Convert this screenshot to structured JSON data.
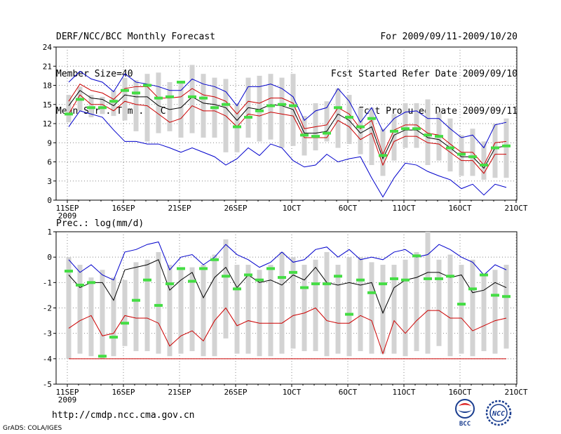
{
  "header": {
    "title": "DERF/NCC/BCC Monthly Forecast",
    "member_size": "Member Size=40",
    "variable": "Mean Surf. Temp.: °C",
    "period": "For 2009/09/11-2009/10/20",
    "refer_date": "Fcst Started Refer Date 2009/09/10",
    "produced_date": "Fcst Produced Date 2009/09/11"
  },
  "footer": {
    "url": "http://cmdp.ncc.cma.gov.cn",
    "grads_credit": "GrADS: COLA/IGES",
    "logo_bcc": "BCC",
    "logo_ncc": "NCC"
  },
  "colors": {
    "ensemble_max": "#0000cc",
    "ensemble_min": "#0000cc",
    "mean_plus_std": "#cc0000",
    "mean_minus_std": "#cc0000",
    "ensemble_mean": "#000000",
    "observed": "#44dd44",
    "box": "#d3d3d3",
    "grid": "#888888"
  },
  "chart_data": [
    {
      "type": "line",
      "title": "Mean Surf. Temp.: °C",
      "x_labels": [
        "11SEP",
        "16SEP",
        "21SEP",
        "26SEP",
        "1OCT",
        "6OCT",
        "11OCT",
        "16OCT",
        "21OCT"
      ],
      "year_label": "2009",
      "ylim": [
        0,
        24
      ],
      "yticks": [
        0,
        3,
        6,
        9,
        12,
        15,
        18,
        21,
        24
      ],
      "days": 40,
      "series": [
        {
          "name": "ensemble max",
          "color": "#0000cc",
          "values": [
            18.5,
            20.2,
            19.0,
            18.5,
            17.0,
            19.8,
            18.5,
            18.2,
            17.8,
            17.2,
            17.2,
            19.0,
            18.2,
            17.8,
            17.0,
            14.8,
            17.8,
            17.8,
            18.2,
            17.5,
            16.2,
            12.5,
            14.0,
            14.5,
            17.5,
            15.5,
            12.2,
            14.5,
            10.8,
            12.8,
            13.8,
            14.0,
            12.8,
            12.8,
            11.2,
            9.8,
            10.2,
            8.2,
            11.8,
            12.2
          ]
        },
        {
          "name": "mean+std",
          "color": "#cc0000",
          "values": [
            15.5,
            18.2,
            17.2,
            16.8,
            15.8,
            17.5,
            17.8,
            17.8,
            16.0,
            16.0,
            16.2,
            17.5,
            16.5,
            16.2,
            15.5,
            13.5,
            15.5,
            15.2,
            16.0,
            16.0,
            15.2,
            11.2,
            11.5,
            11.8,
            14.5,
            13.5,
            11.2,
            12.5,
            7.2,
            11.0,
            11.8,
            11.8,
            10.5,
            10.2,
            8.8,
            7.5,
            7.5,
            5.5,
            9.0,
            9.2
          ]
        },
        {
          "name": "ensemble mean",
          "color": "#000000",
          "values": [
            14.8,
            17.2,
            16.0,
            15.8,
            14.8,
            16.5,
            16.2,
            16.2,
            14.8,
            14.2,
            14.5,
            16.2,
            15.2,
            15.0,
            14.5,
            12.5,
            14.5,
            14.2,
            15.0,
            14.8,
            14.2,
            10.5,
            10.5,
            10.8,
            13.5,
            12.5,
            10.5,
            11.5,
            6.5,
            10.2,
            11.0,
            11.0,
            9.8,
            9.5,
            8.2,
            6.8,
            6.8,
            5.0,
            8.2,
            8.5
          ]
        },
        {
          "name": "mean-std",
          "color": "#cc0000",
          "values": [
            13.5,
            16.5,
            15.0,
            15.0,
            14.0,
            15.5,
            15.0,
            14.8,
            13.5,
            12.2,
            12.8,
            14.8,
            14.0,
            14.0,
            13.2,
            11.5,
            13.5,
            13.2,
            13.8,
            13.5,
            13.2,
            9.8,
            9.8,
            9.8,
            12.5,
            11.5,
            9.5,
            10.5,
            5.5,
            9.2,
            10.0,
            10.0,
            9.0,
            8.8,
            7.5,
            6.2,
            6.2,
            4.2,
            7.2,
            7.2
          ]
        },
        {
          "name": "ensemble min",
          "color": "#0000cc",
          "values": [
            11.5,
            14.0,
            13.5,
            13.0,
            11.0,
            9.2,
            9.2,
            8.8,
            8.8,
            8.2,
            7.5,
            8.2,
            7.5,
            6.8,
            5.5,
            6.5,
            8.2,
            7.0,
            8.8,
            8.2,
            6.2,
            5.2,
            5.5,
            7.2,
            6.0,
            6.5,
            6.8,
            3.5,
            0.5,
            3.5,
            5.8,
            5.5,
            4.5,
            3.8,
            3.2,
            1.8,
            2.5,
            0.8,
            2.5,
            2.0
          ]
        },
        {
          "name": "observed",
          "color": "#44dd44",
          "values": [
            13.5,
            15.8,
            14.5,
            14.5,
            15.5,
            17.2,
            16.8,
            18.0,
            16.0,
            16.2,
            18.5,
            16.2,
            16.0,
            14.5,
            15.0,
            11.5,
            13.0,
            14.0,
            14.8,
            15.0,
            14.8,
            10.2,
            10.0,
            10.5,
            14.5,
            13.0,
            11.5,
            12.8,
            7.0,
            10.8,
            11.2,
            11.2,
            10.2,
            10.0,
            8.2,
            7.2,
            6.8,
            5.5,
            8.2,
            8.5
          ]
        }
      ],
      "boxes_low": [
        12.2,
        14.0,
        13.0,
        13.5,
        13.2,
        12.5,
        10.8,
        9.2,
        10.5,
        10.8,
        9.8,
        10.5,
        9.8,
        9.8,
        7.5,
        7.5,
        9.8,
        9.2,
        9.5,
        8.2,
        8.5,
        7.0,
        7.8,
        9.2,
        8.2,
        8.8,
        7.2,
        5.5,
        3.8,
        6.2,
        8.2,
        8.2,
        5.5,
        6.2,
        4.5,
        3.8,
        3.8,
        3.2,
        3.5,
        3.5
      ],
      "boxes_high": [
        16.5,
        17.8,
        16.5,
        16.2,
        17.2,
        19.2,
        18.8,
        19.8,
        20.0,
        18.5,
        18.5,
        21.2,
        19.8,
        19.2,
        19.0,
        15.2,
        19.2,
        19.5,
        19.8,
        19.2,
        19.8,
        13.2,
        15.2,
        15.5,
        17.5,
        16.5,
        14.5,
        14.5,
        11.2,
        13.5,
        15.2,
        15.2,
        15.8,
        13.8,
        12.8,
        10.2,
        11.2,
        9.2,
        12.0,
        12.8
      ]
    },
    {
      "type": "line",
      "title": "Prec.: log(mm/d)",
      "x_labels": [
        "11SEP",
        "16SEP",
        "21SEP",
        "26SEP",
        "1OCT",
        "6OCT",
        "11OCT",
        "16OCT",
        "21OCT"
      ],
      "year_label": "2009",
      "ylim": [
        -5,
        1
      ],
      "yticks": [
        -5,
        -4,
        -3,
        -2,
        -1,
        0,
        1
      ],
      "days": 40,
      "series": [
        {
          "name": "ensemble max",
          "color": "#0000cc",
          "values": [
            -0.1,
            -0.6,
            -0.3,
            -0.7,
            -0.9,
            0.2,
            0.3,
            0.5,
            0.6,
            -0.5,
            0.0,
            0.1,
            -0.3,
            0.0,
            0.5,
            0.1,
            -0.1,
            -0.4,
            -0.2,
            0.2,
            -0.2,
            -0.1,
            0.3,
            0.4,
            0.0,
            0.3,
            -0.1,
            0.0,
            -0.1,
            0.2,
            0.3,
            0.0,
            0.1,
            0.5,
            0.3,
            0.0,
            -0.2,
            -0.7,
            -0.3,
            -0.5
          ]
        },
        {
          "name": "ensemble mean",
          "color": "#000000",
          "values": [
            -0.7,
            -1.2,
            -1.0,
            -1.0,
            -1.7,
            -0.5,
            -0.4,
            -0.3,
            -0.1,
            -1.3,
            -0.9,
            -0.6,
            -1.6,
            -0.8,
            -0.4,
            -1.2,
            -0.7,
            -1.0,
            -0.9,
            -1.1,
            -0.7,
            -0.9,
            -0.4,
            -1.0,
            -1.1,
            -1.0,
            -1.1,
            -1.0,
            -2.2,
            -1.2,
            -0.9,
            -0.8,
            -0.6,
            -0.6,
            -0.8,
            -0.7,
            -1.4,
            -1.3,
            -1.0,
            -1.2
          ]
        },
        {
          "name": "mean-std",
          "color": "#cc0000",
          "values": [
            -2.8,
            -2.5,
            -2.3,
            -3.1,
            -3.0,
            -2.3,
            -2.4,
            -2.4,
            -2.6,
            -3.5,
            -3.1,
            -2.9,
            -3.3,
            -2.5,
            -2.0,
            -2.7,
            -2.5,
            -2.6,
            -2.6,
            -2.6,
            -2.3,
            -2.2,
            -2.0,
            -2.5,
            -2.6,
            -2.6,
            -2.3,
            -2.5,
            -3.8,
            -2.5,
            -3.0,
            -2.5,
            -2.1,
            -2.1,
            -2.4,
            -2.4,
            -2.9,
            -2.7,
            -2.5,
            -2.4
          ]
        },
        {
          "name": "ensemble min",
          "color": "#cc0000",
          "values": [
            -4.0,
            -4.0,
            -4.0,
            -4.0,
            -4.0,
            -4.0,
            -4.0,
            -4.0,
            -4.0,
            -4.0,
            -4.0,
            -4.0,
            -4.0,
            -4.0,
            -4.0,
            -4.0,
            -4.0,
            -4.0,
            -4.0,
            -4.0,
            -4.0,
            -4.0,
            -4.0,
            -4.0,
            -4.0,
            -4.0,
            -4.0,
            -4.0,
            -4.0,
            -4.0,
            -4.0,
            -4.0,
            -4.0,
            -4.0,
            -4.0,
            -4.0,
            -4.0,
            -4.0,
            -4.0,
            -4.0
          ]
        },
        {
          "name": "observed",
          "color": "#44dd44",
          "values": [
            -0.55,
            -1.1,
            -1.0,
            -3.9,
            -3.15,
            -2.6,
            -1.7,
            -0.9,
            -1.9,
            -1.05,
            -0.45,
            -0.95,
            -0.45,
            -0.1,
            -0.75,
            -1.25,
            -0.7,
            -0.9,
            -0.45,
            -0.8,
            -0.6,
            -1.2,
            -1.05,
            -1.05,
            -0.75,
            -2.25,
            -0.9,
            -1.4,
            -1.05,
            -0.85,
            -0.9,
            0.05,
            -0.85,
            -0.85,
            -0.75,
            -1.85,
            -1.25,
            -0.7,
            -1.5,
            -1.55
          ]
        }
      ],
      "boxes_low": [
        -4.0,
        -3.8,
        -3.9,
        -4.0,
        -3.9,
        -3.5,
        -3.7,
        -3.7,
        -3.8,
        -3.9,
        -3.8,
        -3.7,
        -3.9,
        -3.9,
        -3.2,
        -3.8,
        -3.8,
        -3.9,
        -3.9,
        -3.8,
        -3.6,
        -3.7,
        -3.7,
        -3.9,
        -3.8,
        -3.9,
        -3.7,
        -3.8,
        -3.8,
        -3.8,
        -3.9,
        -3.7,
        -3.8,
        -3.5,
        -3.9,
        -3.8,
        -3.9,
        -3.7,
        -3.8,
        -3.6
      ],
      "boxes_high": [
        0.0,
        -0.3,
        -0.8,
        -0.5,
        -0.8,
        -0.9,
        -0.2,
        -0.1,
        0.2,
        -0.3,
        -0.5,
        -0.4,
        -0.3,
        0.1,
        0.7,
        -0.3,
        -0.3,
        -0.5,
        -0.3,
        0.2,
        0.0,
        -0.3,
        -0.1,
        0.2,
        -0.3,
        0.0,
        0.0,
        -0.2,
        -0.3,
        -0.3,
        -0.1,
        0.2,
        1.0,
        -0.1,
        0.1,
        -0.3,
        -0.1,
        -0.7,
        -0.5,
        -0.3
      ]
    }
  ]
}
